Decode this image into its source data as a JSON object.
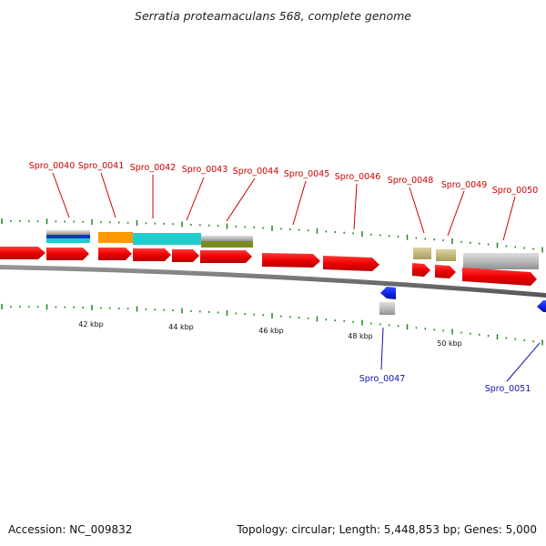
{
  "title": "Serratia proteamaculans 568, complete genome",
  "footer": {
    "accession": "Accession: NC_009832",
    "summary": "Topology: circular; Length: 5,448,853 bp; Genes: 5,000"
  },
  "colors": {
    "forward_cds": "#ee0000",
    "reverse_cds": "#1122ee",
    "forward_label": "#cc0000",
    "reverse_label": "#1111aa",
    "backbone": "#777777",
    "tick": "#1a8a1a",
    "orange": "#ff9900",
    "cyan": "#22cccc",
    "olive": "#7a8a22",
    "khaki": "#c8bd7a",
    "grey": "#bbbbbb",
    "blue_band": "#1133cc"
  },
  "axis": {
    "ticks": [
      {
        "label": "42 kbp"
      },
      {
        "label": "44 kbp"
      },
      {
        "label": "46 kbp"
      },
      {
        "label": "48 kbp"
      },
      {
        "label": "50 kbp"
      }
    ]
  },
  "genes": [
    {
      "name": "Spro_0040",
      "strand": "+"
    },
    {
      "name": "Spro_0041",
      "strand": "+"
    },
    {
      "name": "Spro_0042",
      "strand": "+"
    },
    {
      "name": "Spro_0043",
      "strand": "+"
    },
    {
      "name": "Spro_0044",
      "strand": "+"
    },
    {
      "name": "Spro_0045",
      "strand": "+"
    },
    {
      "name": "Spro_0046",
      "strand": "+"
    },
    {
      "name": "Spro_0047",
      "strand": "-"
    },
    {
      "name": "Spro_0048",
      "strand": "+"
    },
    {
      "name": "Spro_0049",
      "strand": "+"
    },
    {
      "name": "Spro_0050",
      "strand": "+"
    },
    {
      "name": "Spro_0051",
      "strand": "-"
    }
  ]
}
